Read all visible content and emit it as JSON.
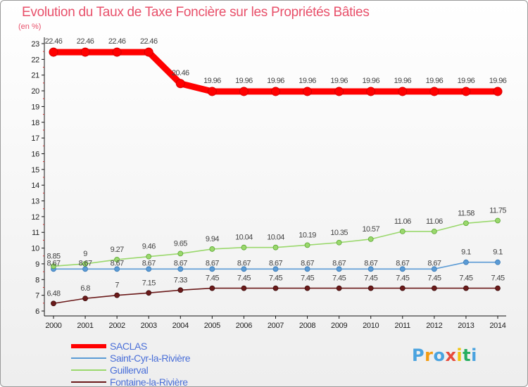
{
  "chart_data": {
    "type": "line",
    "title": "Evolution du Taux de Taxe Foncière sur les Propriétés Bâties",
    "ylabel": "(en %)",
    "xlabel": "",
    "x": [
      "2000",
      "2001",
      "2002",
      "2003",
      "2004",
      "2005",
      "2006",
      "2007",
      "2008",
      "2009",
      "2010",
      "2011",
      "2012",
      "2013",
      "2014"
    ],
    "ylim": [
      6,
      23
    ],
    "yticks": [
      "6",
      "7",
      "8",
      "9",
      "10",
      "11",
      "12",
      "13",
      "14",
      "15",
      "16",
      "17",
      "18",
      "19",
      "20",
      "21",
      "22",
      "23"
    ],
    "grid": false,
    "legend_position": "bottom-left",
    "series": [
      {
        "name": "SACLAS",
        "color": "#ff0000",
        "values": [
          22.46,
          22.46,
          22.46,
          22.46,
          20.46,
          19.96,
          19.96,
          19.96,
          19.96,
          19.96,
          19.96,
          19.96,
          19.96,
          19.96,
          19.96
        ],
        "labels": [
          "22.46",
          "22.46",
          "22.46",
          "22.46",
          "20.46",
          "19.96",
          "19.96",
          "19.96",
          "19.96",
          "19.96",
          "19.96",
          "19.96",
          "19.96",
          "19.96",
          "19.96"
        ]
      },
      {
        "name": "Saint-Cyr-la-Rivière",
        "color": "#5b9bd5",
        "values": [
          8.67,
          8.67,
          8.67,
          8.67,
          8.67,
          8.67,
          8.67,
          8.67,
          8.67,
          8.67,
          8.67,
          8.67,
          8.67,
          9.1,
          9.1
        ],
        "labels": [
          "8.67",
          "8.67",
          "8.67",
          "8.67",
          "8.67",
          "8.67",
          "8.67",
          "8.67",
          "8.67",
          "8.67",
          "8.67",
          "8.67",
          "8.67",
          "9.1",
          "9.1"
        ]
      },
      {
        "name": "Guillerval",
        "color": "#9ad86c",
        "values": [
          8.85,
          9,
          9.27,
          9.46,
          9.65,
          9.94,
          10.04,
          10.04,
          10.19,
          10.35,
          10.57,
          11.06,
          11.06,
          11.58,
          11.75
        ],
        "labels": [
          "8.85",
          "9",
          "9.27",
          "9.46",
          "9.65",
          "9.94",
          "10.04",
          "10.04",
          "10.19",
          "10.35",
          "10.57",
          "11.06",
          "11.06",
          "11.58",
          "11.75"
        ]
      },
      {
        "name": "Fontaine-la-Rivière",
        "color": "#6b1a1a",
        "values": [
          6.48,
          6.8,
          7,
          7.15,
          7.33,
          7.45,
          7.45,
          7.45,
          7.45,
          7.45,
          7.45,
          7.45,
          7.45,
          7.45,
          7.45
        ],
        "labels": [
          "6.48",
          "6.8",
          "7",
          "7.15",
          "7.33",
          "7.45",
          "7.45",
          "7.45",
          "7.45",
          "7.45",
          "7.45",
          "7.45",
          "7.45",
          "7.45",
          "7.45"
        ]
      }
    ]
  },
  "brand": {
    "letters": [
      "P",
      "r",
      "o",
      "x",
      "i",
      "t",
      "i"
    ],
    "colors": [
      "#4aa3df",
      "#f39c12",
      "#4aa3df",
      "#e74c3c",
      "#f1c40f",
      "#27ae60",
      "#4aa3df"
    ]
  },
  "axis_color": "#111111"
}
